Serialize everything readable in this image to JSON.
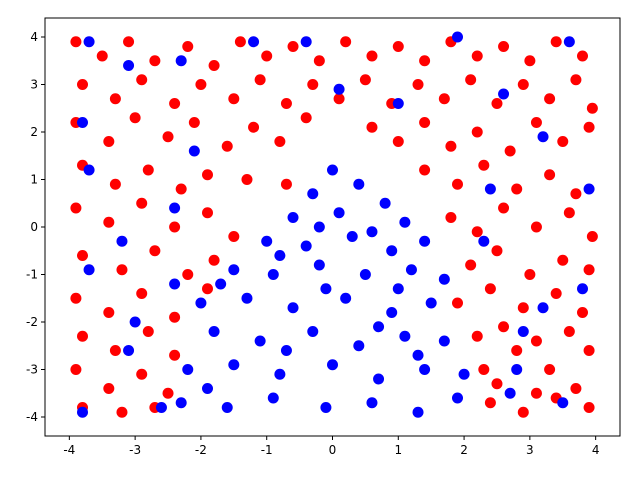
{
  "chart_data": {
    "type": "scatter",
    "xlim": [
      -4.37,
      4.37
    ],
    "ylim": [
      -4.4,
      4.4
    ],
    "xticks": [
      -4,
      -3,
      -2,
      -1,
      0,
      1,
      2,
      3,
      4
    ],
    "yticks": [
      -4,
      -3,
      -2,
      -1,
      0,
      1,
      2,
      3,
      4
    ],
    "series": [
      {
        "color": "#ff0000",
        "x": [
          -3.9,
          -3.5,
          -3.1,
          -2.7,
          -2.2,
          -1.8,
          -1.4,
          -1.0,
          -0.6,
          -0.2,
          0.2,
          0.6,
          1.0,
          1.4,
          1.8,
          2.2,
          2.6,
          3.0,
          3.4,
          3.8,
          -3.8,
          -3.3,
          -2.9,
          -2.4,
          -2.0,
          -1.5,
          -1.1,
          -0.7,
          -0.3,
          0.1,
          0.5,
          0.9,
          1.3,
          1.7,
          2.1,
          2.5,
          2.9,
          3.3,
          3.7,
          3.95,
          -3.9,
          -3.4,
          -3.0,
          -2.5,
          -2.1,
          -1.6,
          -1.2,
          -0.8,
          -0.4,
          0.6,
          1.0,
          1.4,
          1.8,
          2.2,
          2.7,
          3.1,
          3.5,
          3.9,
          -3.8,
          -3.3,
          -2.8,
          -2.3,
          -1.9,
          -1.3,
          -0.7,
          1.4,
          1.9,
          2.3,
          2.8,
          3.3,
          3.7,
          -3.9,
          -3.4,
          -2.9,
          -2.4,
          -1.9,
          -1.5,
          1.8,
          2.2,
          2.6,
          3.1,
          3.6,
          3.95,
          -3.8,
          -3.2,
          -2.7,
          -2.2,
          -1.8,
          2.1,
          2.5,
          3.0,
          3.5,
          3.9,
          -3.9,
          -3.4,
          -2.9,
          -2.4,
          -1.9,
          1.9,
          2.4,
          2.9,
          3.4,
          3.8,
          -3.8,
          -3.3,
          -2.8,
          -2.4,
          2.2,
          2.6,
          3.1,
          3.6,
          3.9,
          -3.9,
          -3.4,
          -2.9,
          -2.5,
          2.3,
          2.8,
          3.3,
          3.7,
          -3.8,
          -3.2,
          -2.7,
          2.4,
          2.9,
          3.4,
          3.9,
          2.5,
          3.1
        ],
        "y": [
          3.9,
          3.6,
          3.9,
          3.5,
          3.8,
          3.4,
          3.9,
          3.6,
          3.8,
          3.5,
          3.9,
          3.6,
          3.8,
          3.5,
          3.9,
          3.6,
          3.8,
          3.5,
          3.9,
          3.6,
          3.0,
          2.7,
          3.1,
          2.6,
          3.0,
          2.7,
          3.1,
          2.6,
          3.0,
          2.7,
          3.1,
          2.6,
          3.0,
          2.7,
          3.1,
          2.6,
          3.0,
          2.7,
          3.1,
          2.5,
          2.2,
          1.8,
          2.3,
          1.9,
          2.2,
          1.7,
          2.1,
          1.8,
          2.3,
          2.1,
          1.8,
          2.2,
          1.7,
          2.0,
          1.6,
          2.2,
          1.8,
          2.1,
          1.3,
          0.9,
          1.2,
          0.8,
          1.1,
          1.0,
          0.9,
          1.2,
          0.9,
          1.3,
          0.8,
          1.1,
          0.7,
          0.4,
          0.1,
          0.5,
          0.0,
          0.3,
          -0.2,
          0.2,
          -0.1,
          0.4,
          0.0,
          0.3,
          -0.2,
          -0.6,
          -0.9,
          -0.5,
          -1.0,
          -0.7,
          -0.8,
          -0.5,
          -1.0,
          -0.7,
          -0.9,
          -1.5,
          -1.8,
          -1.4,
          -1.9,
          -1.3,
          -1.6,
          -1.3,
          -1.7,
          -1.4,
          -1.8,
          -2.3,
          -2.6,
          -2.2,
          -2.7,
          -2.3,
          -2.1,
          -2.4,
          -2.2,
          -2.6,
          -3.0,
          -3.4,
          -3.1,
          -3.5,
          -3.0,
          -2.6,
          -3.0,
          -3.4,
          -3.8,
          -3.9,
          -3.8,
          -3.7,
          -3.9,
          -3.6,
          -3.8,
          -3.3,
          -3.5
        ]
      },
      {
        "color": "#0000ff",
        "x": [
          0.0,
          -0.3,
          0.4,
          0.8,
          -0.6,
          0.1,
          1.1,
          -1.0,
          -0.4,
          0.3,
          0.9,
          1.4,
          -1.5,
          -0.9,
          -0.2,
          0.5,
          1.2,
          1.7,
          -2.0,
          -1.3,
          -0.6,
          0.2,
          0.9,
          1.5,
          -1.8,
          -1.1,
          -0.3,
          0.4,
          1.1,
          1.7,
          -2.2,
          -1.5,
          -0.8,
          0.0,
          0.7,
          1.4,
          2.0,
          -2.3,
          -1.6,
          -0.9,
          -0.1,
          0.6,
          1.3,
          1.9,
          2.8,
          2.9,
          2.7,
          -3.7,
          -3.1,
          -2.3,
          -1.2,
          -0.4,
          1.9,
          3.6,
          -3.8,
          -2.1,
          0.1,
          1.0,
          2.6,
          3.2,
          -3.7,
          -2.4,
          2.4,
          3.9,
          -3.2,
          2.3,
          -3.7,
          -2.4,
          3.8,
          -3.0,
          3.2,
          -3.1,
          -3.8,
          3.5,
          -2.6,
          -0.2,
          0.6,
          -0.8,
          1.0,
          -0.1,
          -1.7,
          0.7,
          -0.7,
          1.3,
          -1.9
        ],
        "y": [
          1.2,
          0.7,
          0.9,
          0.5,
          0.2,
          0.3,
          0.1,
          -0.3,
          -0.4,
          -0.2,
          -0.5,
          -0.3,
          -0.9,
          -1.0,
          -0.8,
          -1.0,
          -0.9,
          -1.1,
          -1.6,
          -1.5,
          -1.7,
          -1.5,
          -1.8,
          -1.6,
          -2.2,
          -2.4,
          -2.2,
          -2.5,
          -2.3,
          -2.4,
          -3.0,
          -2.9,
          -3.1,
          -2.9,
          -3.2,
          -3.0,
          -3.1,
          -3.7,
          -3.8,
          -3.6,
          -3.8,
          -3.7,
          -3.9,
          -3.6,
          -3.0,
          -2.2,
          -3.5,
          3.9,
          3.4,
          3.5,
          3.9,
          3.9,
          4.0,
          3.9,
          2.2,
          1.6,
          2.9,
          2.6,
          2.8,
          1.9,
          1.2,
          0.4,
          0.8,
          0.8,
          -0.3,
          -0.3,
          -0.9,
          -1.2,
          -1.3,
          -2.0,
          -1.7,
          -2.6,
          -3.9,
          -3.7,
          -3.8,
          0.0,
          -0.1,
          -0.6,
          -1.3,
          -1.3,
          -1.2,
          -2.1,
          -2.6,
          -2.7,
          -3.4
        ]
      }
    ]
  }
}
